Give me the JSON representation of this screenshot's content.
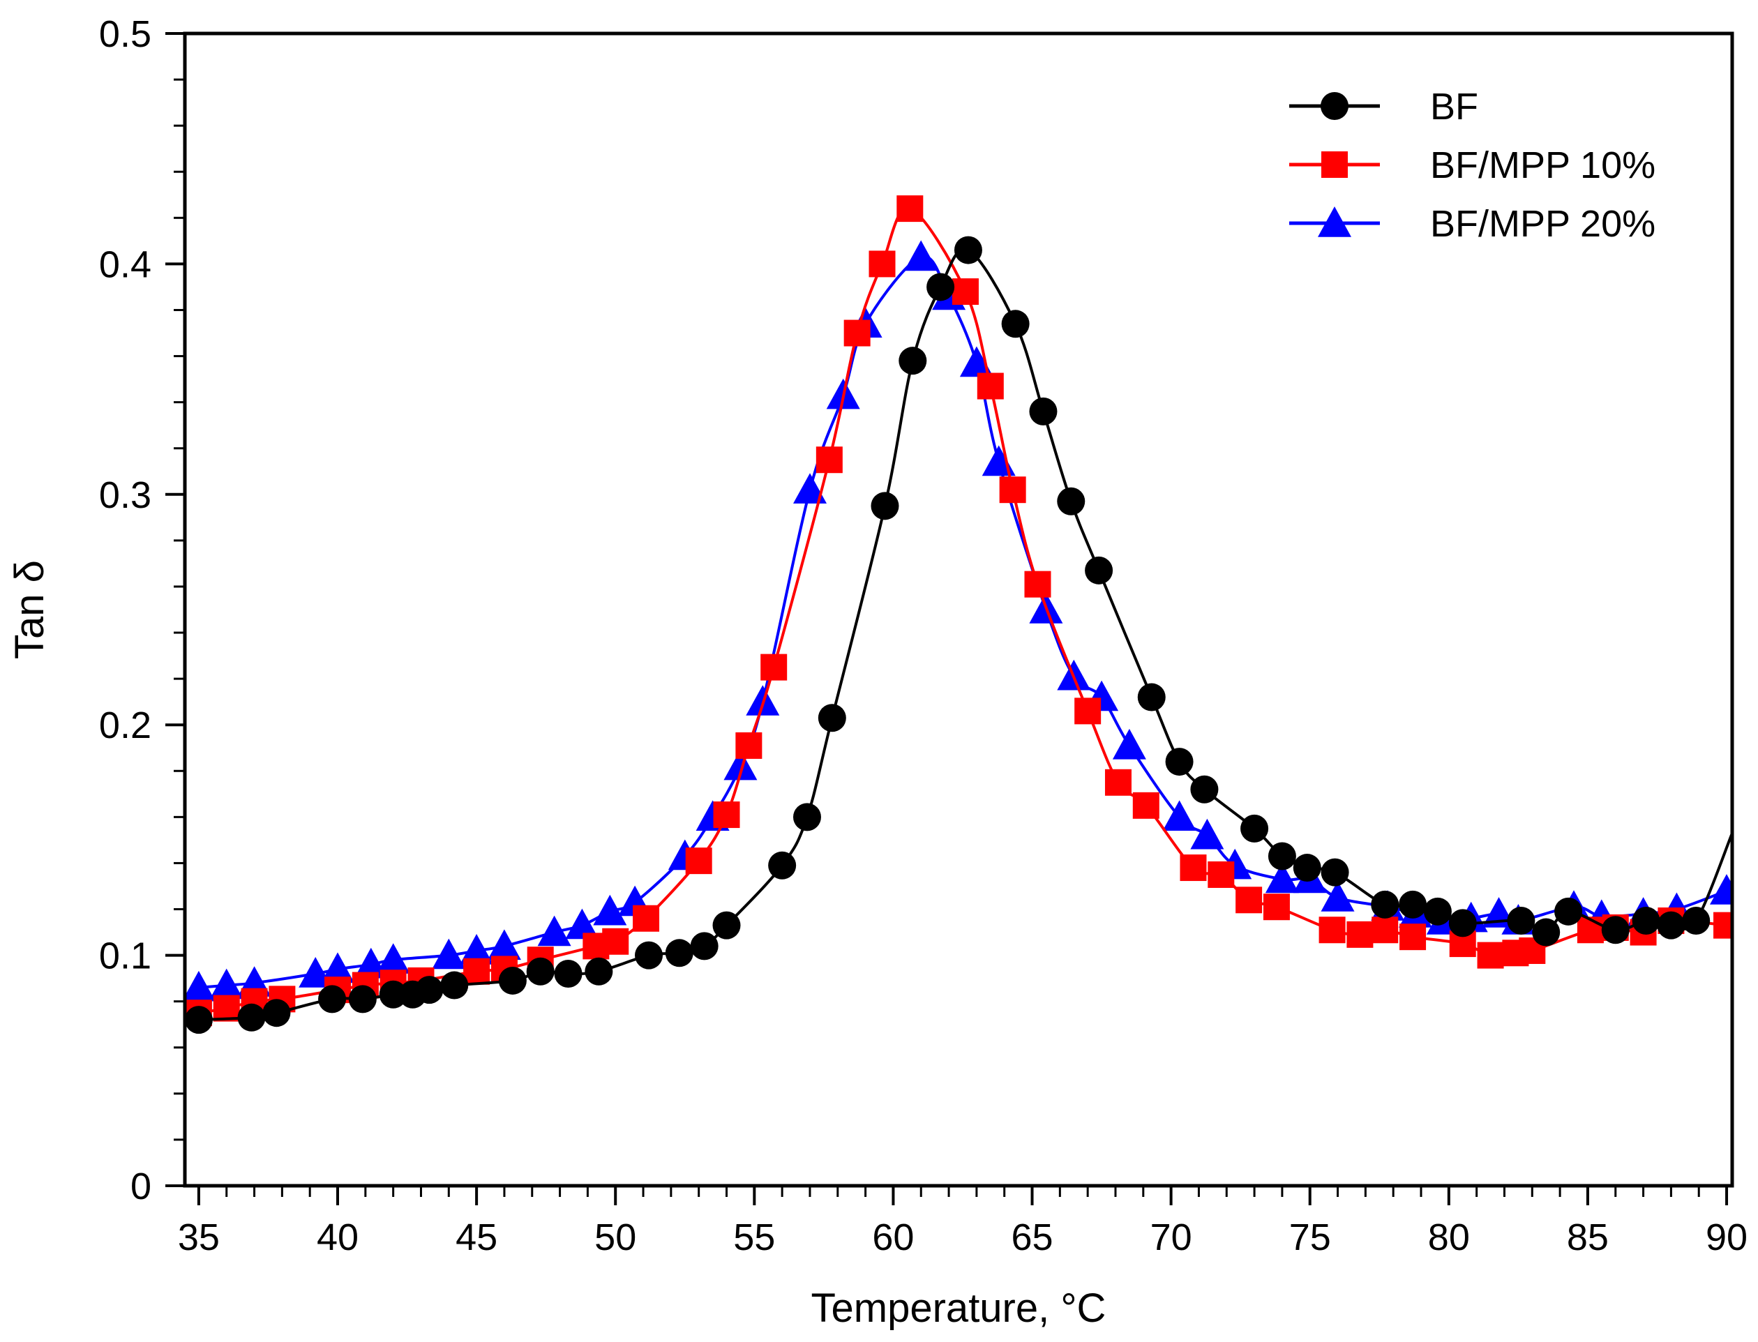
{
  "chart_data": {
    "type": "line",
    "title": "",
    "xlabel": "Temperature, °C",
    "ylabel": "Tan δ",
    "xlim": [
      34.5,
      90.2
    ],
    "ylim": [
      0,
      0.5
    ],
    "x_ticks": [
      35,
      40,
      45,
      50,
      55,
      60,
      65,
      70,
      75,
      80,
      85,
      90
    ],
    "x_tick_labels": [
      "35",
      "40",
      "45",
      "50",
      "55",
      "60",
      "65",
      "70",
      "75",
      "80",
      "85",
      "90"
    ],
    "y_ticks": [
      0,
      0.1,
      0.2,
      0.3,
      0.4,
      0.5
    ],
    "y_tick_labels": [
      "0",
      "0.1",
      "0.2",
      "0.3",
      "0.4",
      "0.5"
    ],
    "grid": false,
    "legend_position": "top-right",
    "series": [
      {
        "name": "BF",
        "color": "#000000",
        "marker": "circle",
        "x": [
          35.0,
          36.9,
          37.8,
          39.8,
          40.9,
          42.0,
          42.7,
          43.3,
          44.2,
          46.3,
          47.3,
          48.3,
          49.4,
          51.2,
          52.3,
          53.2,
          54.0,
          56.0,
          56.9,
          57.8,
          59.7,
          60.7,
          61.7,
          62.7,
          64.4,
          65.4,
          66.4,
          67.4,
          69.3,
          70.3,
          71.2,
          73.0,
          74.0,
          74.9,
          75.9,
          77.7,
          78.7,
          79.6,
          80.5,
          82.6,
          83.5,
          84.3,
          86.0,
          87.1,
          88.0,
          88.9
        ],
        "y": [
          0.072,
          0.073,
          0.075,
          0.081,
          0.081,
          0.083,
          0.083,
          0.085,
          0.087,
          0.089,
          0.093,
          0.092,
          0.093,
          0.1,
          0.101,
          0.104,
          0.113,
          0.139,
          0.16,
          0.203,
          0.295,
          0.358,
          0.39,
          0.406,
          0.374,
          0.336,
          0.297,
          0.267,
          0.212,
          0.184,
          0.172,
          0.155,
          0.143,
          0.138,
          0.136,
          0.122,
          0.122,
          0.119,
          0.114,
          0.115,
          0.11,
          0.119,
          0.111,
          0.115,
          0.113,
          0.115
        ],
        "curve_end": [
          90.2,
          0.153
        ]
      },
      {
        "name": "BF/MPP 10%",
        "color": "#ff0000",
        "marker": "square",
        "x": [
          35.0,
          36.0,
          37.0,
          38.0,
          40.0,
          41.0,
          42.0,
          43.0,
          45.0,
          46.0,
          47.3,
          49.3,
          50.0,
          51.1,
          53.0,
          54.0,
          54.8,
          55.7,
          57.7,
          58.7,
          59.6,
          60.6,
          62.6,
          63.5,
          64.3,
          65.2,
          67.0,
          68.1,
          69.1,
          70.8,
          71.8,
          72.8,
          73.8,
          75.8,
          76.8,
          77.7,
          78.7,
          80.5,
          81.5,
          82.4,
          83.0,
          85.1,
          86.0,
          87.0,
          88.0,
          90.0
        ],
        "y": [
          0.075,
          0.077,
          0.08,
          0.081,
          0.085,
          0.087,
          0.088,
          0.089,
          0.093,
          0.094,
          0.098,
          0.104,
          0.106,
          0.116,
          0.141,
          0.161,
          0.191,
          0.225,
          0.315,
          0.37,
          0.4,
          0.424,
          0.388,
          0.347,
          0.302,
          0.261,
          0.206,
          0.175,
          0.165,
          0.138,
          0.135,
          0.124,
          0.121,
          0.111,
          0.109,
          0.111,
          0.108,
          0.105,
          0.1,
          0.101,
          0.102,
          0.111,
          0.112,
          0.11,
          0.115,
          0.113
        ]
      },
      {
        "name": "BF/MPP 20%",
        "color": "#0000ff",
        "marker": "triangle",
        "x": [
          35.0,
          36.0,
          37.0,
          39.2,
          40.0,
          41.2,
          42.0,
          44.0,
          45.0,
          46.0,
          47.8,
          48.8,
          49.8,
          50.7,
          52.5,
          53.5,
          54.5,
          55.3,
          57.0,
          58.2,
          59.0,
          61.0,
          62.0,
          63.0,
          63.8,
          65.5,
          66.5,
          67.5,
          68.5,
          70.3,
          71.3,
          72.3,
          74.0,
          75.0,
          76.0,
          77.8,
          78.8,
          79.8,
          80.8,
          81.8,
          82.5,
          84.5,
          85.5,
          87.0,
          88.2,
          90.0
        ],
        "y": [
          0.086,
          0.087,
          0.088,
          0.092,
          0.094,
          0.096,
          0.098,
          0.1,
          0.102,
          0.104,
          0.11,
          0.113,
          0.119,
          0.123,
          0.143,
          0.16,
          0.182,
          0.21,
          0.302,
          0.343,
          0.374,
          0.403,
          0.386,
          0.357,
          0.314,
          0.25,
          0.221,
          0.212,
          0.191,
          0.16,
          0.152,
          0.139,
          0.133,
          0.133,
          0.125,
          0.121,
          0.118,
          0.115,
          0.116,
          0.118,
          0.115,
          0.121,
          0.117,
          0.118,
          0.12,
          0.128
        ]
      }
    ]
  }
}
